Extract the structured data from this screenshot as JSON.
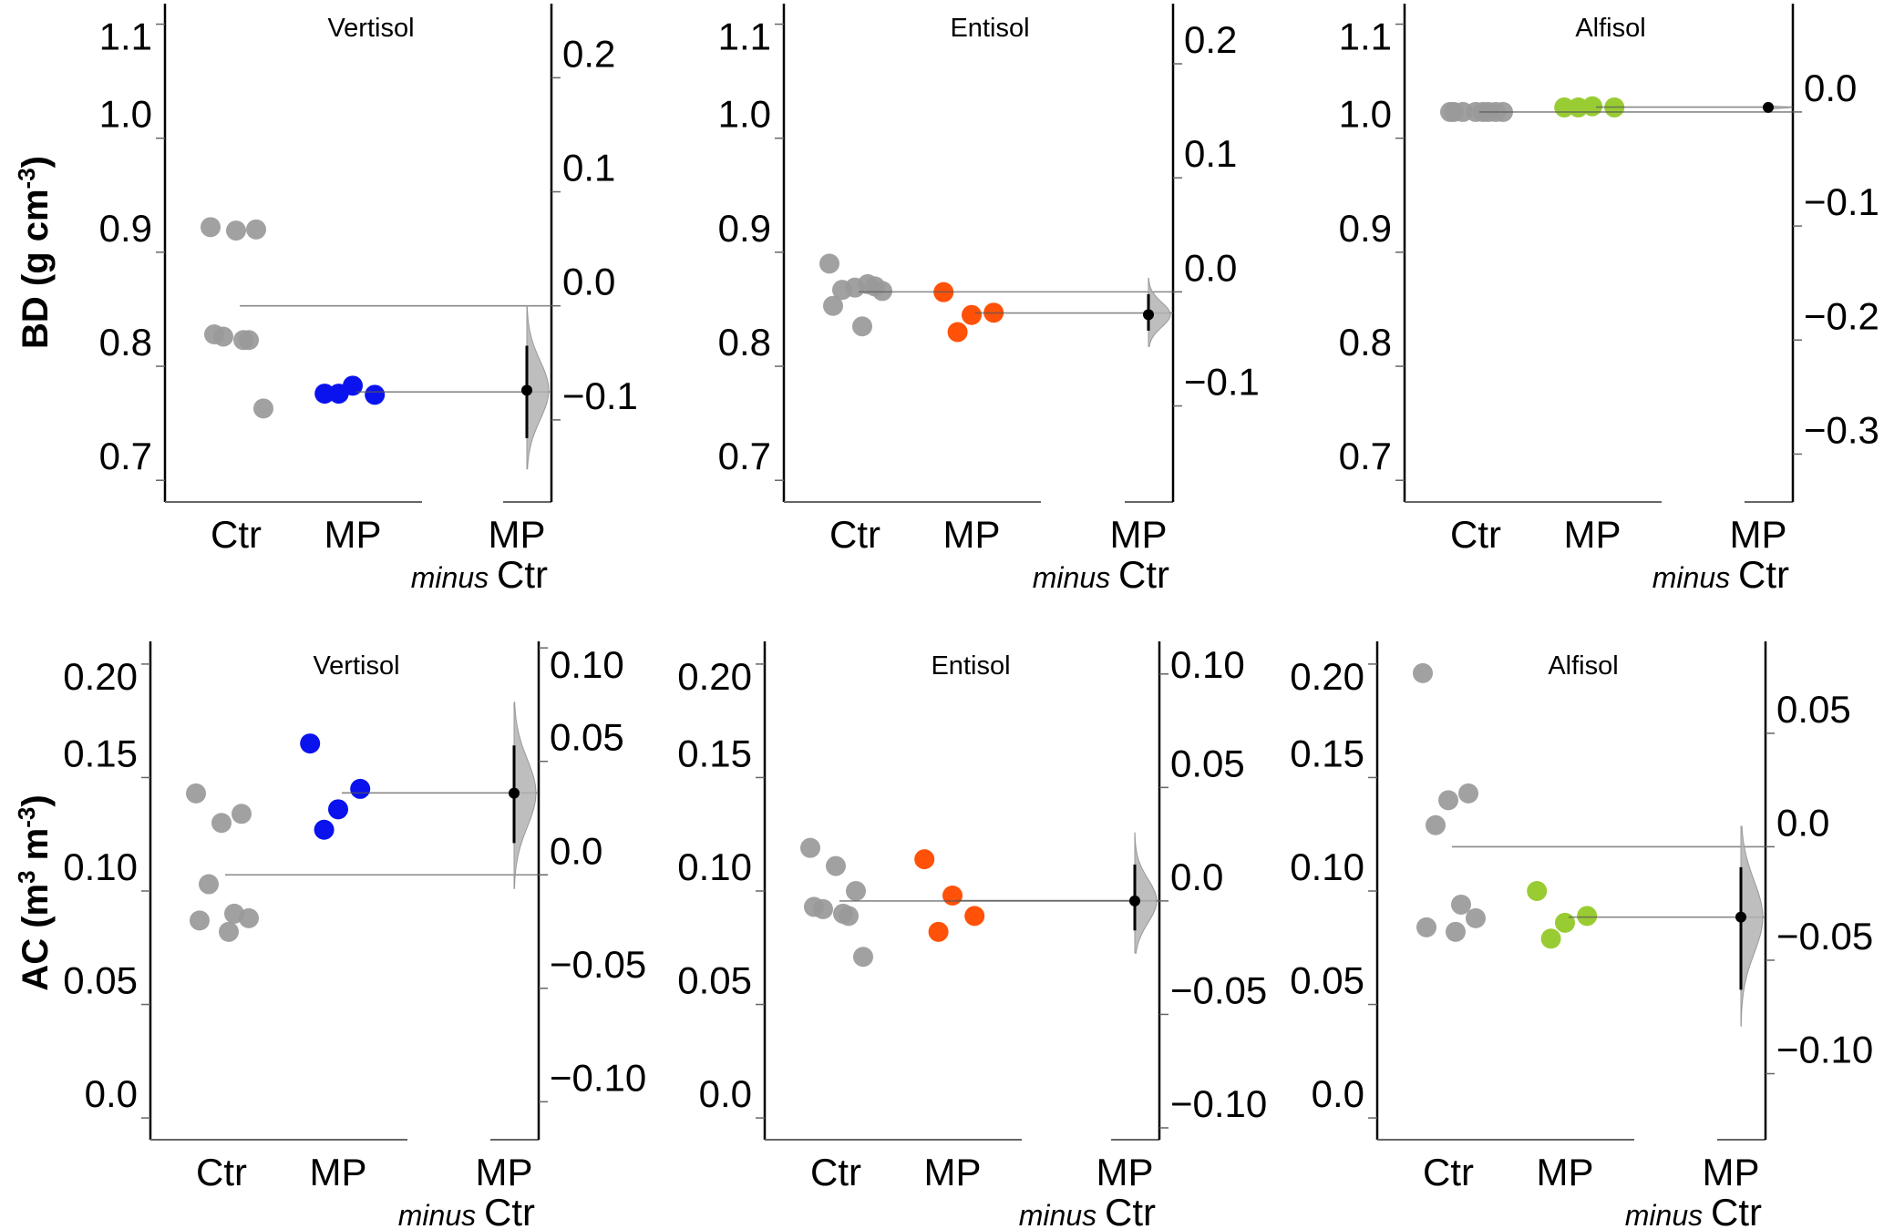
{
  "chart_data": [
    {
      "type": "scatter",
      "subtype": "estimation-plot",
      "row": "BD",
      "title": "Vertisol",
      "ylabel": "BD (g cm-3)",
      "ylim": [
        0.681,
        1.118
      ],
      "yticks": [
        0.7,
        0.8,
        0.9,
        1.0,
        1.1
      ],
      "ytick_labels": [
        "0.7",
        "0.8",
        "0.9",
        "1.0",
        "1.1"
      ],
      "delta_ticks": [
        -0.1,
        0.0,
        0.1,
        0.2
      ],
      "delta_tick_labels": [
        "−0.1",
        "0.0",
        "0.1",
        "0.2"
      ],
      "categories": [
        "Ctr",
        "MP"
      ],
      "delta_label": {
        "top": "MP",
        "minus": "minus",
        "ref": "Ctr"
      },
      "series": [
        {
          "name": "Ctr",
          "color": "#999999",
          "values": [
            0.922,
            0.919,
            0.92,
            0.826,
            0.823,
            0.828,
            0.823,
            0.763
          ]
        },
        {
          "name": "MP",
          "color": "#0a12ee",
          "values": [
            0.776,
            0.783,
            0.775,
            0.776
          ]
        }
      ],
      "effect": {
        "mean_diff": -0.074,
        "ci": [
          -0.035,
          -0.116
        ],
        "dist_range": [
          0.0,
          -0.143
        ]
      }
    },
    {
      "type": "scatter",
      "subtype": "estimation-plot",
      "row": "BD",
      "title": "Entisol",
      "ylabel": "",
      "ylim": [
        0.681,
        1.118
      ],
      "yticks": [
        0.7,
        0.8,
        0.9,
        1.0,
        1.1
      ],
      "ytick_labels": [
        "0.7",
        "0.8",
        "0.9",
        "1.0",
        "1.1"
      ],
      "delta_ticks": [
        -0.1,
        0.0,
        0.1,
        0.2
      ],
      "delta_tick_labels": [
        "−0.1",
        "0.0",
        "0.1",
        "0.2"
      ],
      "categories": [
        "Ctr",
        "MP"
      ],
      "delta_label": {
        "top": "MP",
        "minus": "minus",
        "ref": "Ctr"
      },
      "series": [
        {
          "name": "Ctr",
          "color": "#999999",
          "values": [
            0.89,
            0.869,
            0.87,
            0.867,
            0.872,
            0.853,
            0.835,
            0.866
          ]
        },
        {
          "name": "MP",
          "color": "#ff5108",
          "values": [
            0.865,
            0.845,
            0.847,
            0.83
          ]
        }
      ],
      "effect": {
        "mean_diff": -0.02,
        "ci": [
          -0.002,
          -0.034
        ],
        "dist_range": [
          0.012,
          -0.048
        ]
      }
    },
    {
      "type": "scatter",
      "subtype": "estimation-plot",
      "row": "BD",
      "title": "Alfisol",
      "ylabel": "",
      "ylim": [
        0.681,
        1.118
      ],
      "yticks": [
        0.7,
        0.8,
        0.9,
        1.0,
        1.1
      ],
      "ytick_labels": [
        "0.7",
        "0.8",
        "0.9",
        "1.0",
        "1.1"
      ],
      "delta_ticks": [
        -0.3,
        -0.2,
        -0.1,
        0.0
      ],
      "delta_tick_labels": [
        "−0.3",
        "−0.2",
        "−0.1",
        "0.0"
      ],
      "categories": [
        "Ctr",
        "MP"
      ],
      "delta_label": {
        "top": "MP",
        "minus": "minus",
        "ref": "Ctr"
      },
      "series": [
        {
          "name": "Ctr",
          "color": "#999999",
          "values": [
            1.023,
            1.023,
            1.023,
            1.023,
            1.023,
            1.023,
            1.023,
            1.023
          ]
        },
        {
          "name": "MP",
          "color": "#99cc33",
          "values": [
            1.027,
            1.028,
            1.027,
            1.027
          ]
        }
      ],
      "effect": {
        "mean_diff": 0.004,
        "ci": [
          0.005,
          0.003
        ],
        "dist_range": [
          0.006,
          0.002
        ]
      }
    },
    {
      "type": "scatter",
      "subtype": "estimation-plot",
      "row": "AC",
      "title": "Vertisol",
      "ylabel": "AC (m3 m-3)",
      "ylim": [
        -0.0096,
        0.21
      ],
      "yticks": [
        0.0,
        0.05,
        0.1,
        0.15,
        0.2
      ],
      "ytick_labels": [
        "0.0",
        "0.05",
        "0.10",
        "0.15",
        "0.20"
      ],
      "delta_ticks": [
        -0.1,
        -0.05,
        0.0,
        0.05,
        0.1
      ],
      "delta_tick_labels": [
        "−0.10",
        "−0.05",
        "0.0",
        "0.05",
        "0.10"
      ],
      "categories": [
        "Ctr",
        "MP"
      ],
      "delta_label": {
        "top": "MP",
        "minus": "minus",
        "ref": "Ctr"
      },
      "series": [
        {
          "name": "Ctr",
          "color": "#999999",
          "values": [
            0.143,
            0.13,
            0.134,
            0.103,
            0.09,
            0.087,
            0.082,
            0.088
          ]
        },
        {
          "name": "MP",
          "color": "#0a12ee",
          "values": [
            0.165,
            0.136,
            0.145,
            0.127
          ]
        }
      ],
      "effect": {
        "mean_diff": 0.036,
        "ci": [
          0.057,
          0.014
        ],
        "dist_range": [
          0.076,
          -0.006
        ]
      }
    },
    {
      "type": "scatter",
      "subtype": "estimation-plot",
      "row": "AC",
      "title": "Entisol",
      "ylabel": "",
      "ylim": [
        -0.0096,
        0.21
      ],
      "yticks": [
        0.0,
        0.05,
        0.1,
        0.15,
        0.2
      ],
      "ytick_labels": [
        "0.0",
        "0.05",
        "0.10",
        "0.15",
        "0.20"
      ],
      "delta_ticks": [
        -0.1,
        -0.05,
        0.0,
        0.05,
        0.1
      ],
      "delta_tick_labels": [
        "−0.10",
        "−0.05",
        "0.0",
        "0.05",
        "0.10"
      ],
      "categories": [
        "Ctr",
        "MP"
      ],
      "delta_label": {
        "top": "MP",
        "minus": "minus",
        "ref": "Ctr"
      },
      "series": [
        {
          "name": "Ctr",
          "color": "#999999",
          "values": [
            0.119,
            0.111,
            0.1,
            0.092,
            0.089,
            0.093,
            0.09,
            0.071
          ]
        },
        {
          "name": "MP",
          "color": "#ff5108",
          "values": [
            0.114,
            0.098,
            0.089,
            0.082
          ]
        }
      ],
      "effect": {
        "mean_diff": 0.0,
        "ci": [
          0.016,
          -0.013
        ],
        "dist_range": [
          0.03,
          -0.023
        ]
      }
    },
    {
      "type": "scatter",
      "subtype": "estimation-plot",
      "row": "AC",
      "title": "Alfisol",
      "ylabel": "",
      "ylim": [
        -0.0096,
        0.21
      ],
      "yticks": [
        0.0,
        0.05,
        0.1,
        0.15,
        0.2
      ],
      "ytick_labels": [
        "0.0",
        "0.05",
        "0.10",
        "0.15",
        "0.20"
      ],
      "delta_ticks": [
        -0.1,
        -0.05,
        0.0,
        0.05
      ],
      "delta_tick_labels": [
        "−0.10",
        "−0.05",
        "0.0",
        "0.05"
      ],
      "categories": [
        "Ctr",
        "MP"
      ],
      "delta_label": {
        "top": "MP",
        "minus": "minus",
        "ref": "Ctr"
      },
      "series": [
        {
          "name": "Ctr",
          "color": "#999999",
          "values": [
            0.196,
            0.14,
            0.143,
            0.129,
            0.094,
            0.084,
            0.082,
            0.088
          ]
        },
        {
          "name": "MP",
          "color": "#99cc33",
          "values": [
            0.1,
            0.086,
            0.089,
            0.079
          ]
        }
      ],
      "effect": {
        "mean_diff": -0.031,
        "ci": [
          -0.009,
          -0.063
        ],
        "dist_range": [
          0.009,
          -0.079
        ]
      }
    }
  ],
  "row_labels": {
    "BD": {
      "main": "BD (g cm",
      "sup": "-3",
      "close": ")"
    },
    "AC": {
      "main": "AC (m",
      "sup1": "3",
      "mid": " m",
      "sup2": "-3",
      "close": ")"
    }
  }
}
